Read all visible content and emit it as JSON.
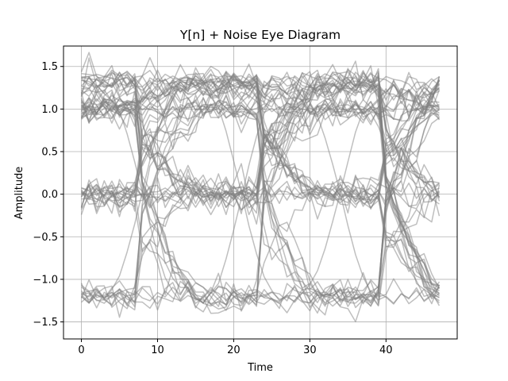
{
  "chart_data": {
    "type": "line",
    "title": "Y[n] + Noise Eye Diagram",
    "xlabel": "Time",
    "ylabel": "Amplitude",
    "xlim": [
      -2.35,
      49.35
    ],
    "ylim": [
      -1.7,
      1.74
    ],
    "xticks": [
      0,
      10,
      20,
      30,
      40
    ],
    "xtick_labels": [
      "0",
      "10",
      "20",
      "30",
      "40"
    ],
    "yticks": [
      -1.5,
      -1.0,
      -0.5,
      0.0,
      0.5,
      1.0,
      1.5
    ],
    "ytick_labels": [
      "−1.5",
      "−1.0",
      "−0.5",
      "0.0",
      "0.5",
      "1.0",
      "1.5"
    ],
    "grid": true,
    "line_color": "#808080",
    "line_alpha": 0.5,
    "samples_per_trace": 48,
    "x": [
      0,
      1,
      2,
      3,
      4,
      5,
      6,
      7,
      8,
      9,
      10,
      11,
      12,
      13,
      14,
      15,
      16,
      17,
      18,
      19,
      20,
      21,
      22,
      23,
      24,
      25,
      26,
      27,
      28,
      29,
      30,
      31,
      32,
      33,
      34,
      35,
      36,
      37,
      38,
      39,
      40,
      41,
      42,
      43,
      44,
      45,
      46,
      47
    ],
    "symbol_period": 16,
    "crossing_times": [
      8.5,
      24.5,
      40.5
    ],
    "signal_levels": [
      -1.2,
      0.0,
      1.0,
      1.3
    ],
    "series": [
      {
        "symbols": [
          1.2,
          1.2,
          1.2,
          1.2
        ],
        "y": [
          1.16,
          1.25,
          1.09,
          1.22,
          1.31,
          1.14,
          1.2,
          1.27,
          1.1,
          1.18,
          1.29,
          1.15,
          1.21,
          1.24,
          1.12,
          1.19,
          1.26,
          1.17,
          1.23,
          1.3,
          1.11,
          1.2,
          1.16,
          1.28,
          1.13,
          1.22,
          1.25,
          1.18,
          1.09,
          1.24,
          1.27,
          1.15,
          1.21,
          1.19,
          1.3,
          1.12,
          1.23,
          1.17,
          1.26,
          1.14,
          1.2,
          1.28,
          1.16,
          1.22,
          1.11,
          1.25,
          1.18,
          1.24
        ]
      },
      {
        "symbols": [
          -1.2,
          -1.2,
          -1.2,
          -1.2
        ],
        "y": [
          -1.18,
          -1.27,
          -1.12,
          -1.23,
          -1.31,
          -1.16,
          -1.2,
          -1.26,
          -1.1,
          -1.19,
          -1.29,
          -1.14,
          -1.22,
          -1.25,
          -1.13,
          -1.21,
          -1.28,
          -1.15,
          -1.24,
          -1.3,
          -1.11,
          -1.19,
          -1.17,
          -1.27,
          -1.12,
          -1.23,
          -1.26,
          -1.18,
          -1.09,
          -1.25,
          -1.28,
          -1.14,
          -1.2,
          -1.22,
          -1.31,
          -1.13,
          -1.24,
          -1.16,
          -1.27,
          -1.15,
          -1.21,
          -1.29,
          -1.17,
          -1.23,
          -1.1,
          -1.26,
          -1.19,
          -1.25
        ]
      },
      {
        "symbols": [
          1.2,
          -1.2,
          1.2,
          -1.2
        ],
        "y": [
          1.22,
          1.15,
          1.28,
          1.18,
          1.1,
          0.98,
          0.71,
          0.38,
          0.02,
          -0.36,
          -0.7,
          -0.98,
          -1.14,
          -1.26,
          -1.19,
          -1.23,
          -1.27,
          -1.16,
          -1.05,
          -0.76,
          -0.42,
          -0.05,
          0.34,
          0.68,
          0.95,
          1.12,
          1.24,
          1.19,
          1.26,
          1.15,
          1.08,
          0.92,
          0.66,
          0.35,
          0.01,
          -0.37,
          -0.71,
          -0.97,
          -1.15,
          -1.24,
          -1.2,
          -1.28,
          -1.17,
          -1.22,
          -1.13,
          -1.25,
          -1.18,
          -1.21
        ]
      },
      {
        "symbols": [
          -1.2,
          1.2,
          -1.2,
          1.2
        ],
        "y": [
          -1.2,
          -1.28,
          -1.14,
          -1.23,
          -1.12,
          -0.96,
          -0.68,
          -0.35,
          0.03,
          0.4,
          0.72,
          0.99,
          1.16,
          1.25,
          1.18,
          1.22,
          1.28,
          1.14,
          1.02,
          0.74,
          0.39,
          0.02,
          -0.37,
          -0.7,
          -0.97,
          -1.13,
          -1.25,
          -1.19,
          -1.27,
          -1.16,
          -1.06,
          -0.9,
          -0.64,
          -0.32,
          0.02,
          0.38,
          0.73,
          0.98,
          1.17,
          1.24,
          1.2,
          1.29,
          1.15,
          1.23,
          1.12,
          1.26,
          1.17,
          1.21
        ]
      },
      {
        "symbols": [
          0.0,
          0.0,
          0.0,
          0.0
        ],
        "y": [
          0.05,
          -0.04,
          0.09,
          -0.02,
          0.11,
          -0.07,
          0.03,
          0.14,
          -0.05,
          0.08,
          -0.1,
          0.02,
          0.12,
          -0.06,
          0.04,
          -0.03,
          0.1,
          -0.08,
          0.06,
          0.13,
          -0.04,
          0.01,
          0.09,
          -0.11,
          0.05,
          -0.02,
          0.07,
          0.15,
          -0.06,
          0.03,
          -0.09,
          0.1,
          0.02,
          -0.05,
          0.12,
          -0.03,
          0.06,
          -0.07,
          0.11,
          0.04,
          -0.1,
          0.08,
          -0.02,
          0.13,
          -0.05,
          0.07,
          -0.08,
          0.03
        ]
      },
      {
        "symbols": [
          1.0,
          1.0,
          1.0,
          1.0
        ],
        "y": [
          0.98,
          1.04,
          0.93,
          1.01,
          1.08,
          0.96,
          1.02,
          0.91,
          1.05,
          0.99,
          1.1,
          0.94,
          1.03,
          0.97,
          1.07,
          0.92,
          1.0,
          1.06,
          0.95,
          1.02,
          0.9,
          1.04,
          0.98,
          1.09,
          0.96,
          1.01,
          0.93,
          1.05,
          0.99,
          1.07,
          0.94,
          1.03,
          0.97,
          1.08,
          0.92,
          1.0,
          1.06,
          0.95,
          1.02,
          0.91,
          1.04,
          0.98,
          1.09,
          0.96,
          1.01,
          0.93,
          1.05,
          0.99
        ]
      }
    ]
  }
}
